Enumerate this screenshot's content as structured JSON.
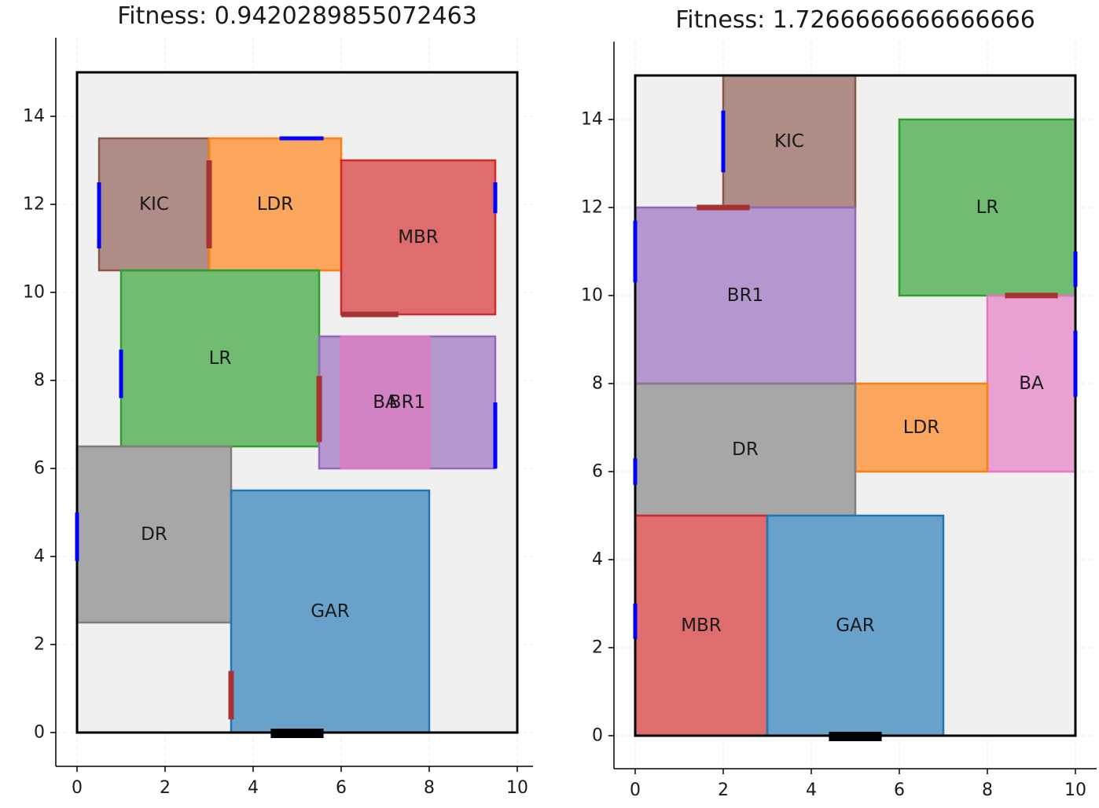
{
  "chart_data": [
    {
      "type": "floorplan",
      "title": "Fitness: 0.9420289855072463",
      "xlim": [
        -0.5,
        10.3
      ],
      "ylim": [
        -0.75,
        15.75
      ],
      "xticks": [
        "0",
        "2",
        "4",
        "6",
        "8",
        "10"
      ],
      "yticks": [
        "0",
        "2",
        "4",
        "6",
        "8",
        "10",
        "12",
        "14"
      ],
      "grid": true,
      "boundary": {
        "x0": 0,
        "y0": 0,
        "x1": 10,
        "y1": 15
      },
      "rooms": [
        {
          "label": "KIC",
          "x0": 0.5,
          "y0": 10.5,
          "x1": 3.0,
          "y1": 13.5,
          "color": "#8c564b"
        },
        {
          "label": "LDR",
          "x0": 3.0,
          "y0": 10.5,
          "x1": 6.0,
          "y1": 13.5,
          "color": "#ff7f0e"
        },
        {
          "label": "MBR",
          "x0": 6.0,
          "y0": 9.5,
          "x1": 9.5,
          "y1": 13.0,
          "color": "#d62728"
        },
        {
          "label": "LR",
          "x0": 1.0,
          "y0": 6.5,
          "x1": 5.5,
          "y1": 10.5,
          "color": "#2ca02c"
        },
        {
          "label": "BR1",
          "x0": 5.5,
          "y0": 6.0,
          "x1": 9.5,
          "y1": 9.0,
          "color": "#9467bd"
        },
        {
          "label": "BA",
          "x0": 6.0,
          "y0": 6.0,
          "x1": 8.0,
          "y1": 9.0,
          "color": "#e377c2"
        },
        {
          "label": "DR",
          "x0": 0.0,
          "y0": 2.5,
          "x1": 3.5,
          "y1": 6.5,
          "color": "#7f7f7f"
        },
        {
          "label": "GAR",
          "x0": 3.5,
          "y0": 0.0,
          "x1": 8.0,
          "y1": 5.5,
          "color": "#1f77b4"
        }
      ],
      "windows": [
        [
          4.6,
          13.5,
          5.6,
          13.5
        ],
        [
          0.5,
          11.0,
          0.5,
          12.5
        ],
        [
          9.5,
          11.8,
          9.5,
          12.5
        ],
        [
          1.0,
          7.6,
          1.0,
          8.7
        ],
        [
          9.5,
          6.0,
          9.5,
          7.5
        ],
        [
          0.0,
          3.9,
          0.0,
          5.0
        ]
      ],
      "doors": [
        [
          3.0,
          11.0,
          3.0,
          13.0
        ],
        [
          6.0,
          9.5,
          7.3,
          9.5
        ],
        [
          5.5,
          6.6,
          5.5,
          8.1
        ],
        [
          3.5,
          0.3,
          3.5,
          1.4
        ]
      ],
      "entrance": [
        4.4,
        0,
        5.6,
        0
      ]
    },
    {
      "type": "floorplan",
      "title": "Fitness: 1.7266666666666666",
      "xlim": [
        -0.5,
        10.5
      ],
      "ylim": [
        -0.75,
        15.75
      ],
      "xticks": [
        "0",
        "2",
        "4",
        "6",
        "8",
        "10"
      ],
      "yticks": [
        "0",
        "2",
        "4",
        "6",
        "8",
        "10",
        "12",
        "14"
      ],
      "grid": true,
      "boundary": {
        "x0": 0,
        "y0": 0,
        "x1": 10,
        "y1": 15
      },
      "rooms": [
        {
          "label": "KIC",
          "x0": 2.0,
          "y0": 12.0,
          "x1": 5.0,
          "y1": 15.0,
          "color": "#8c564b"
        },
        {
          "label": "LR",
          "x0": 6.0,
          "y0": 10.0,
          "x1": 10.0,
          "y1": 14.0,
          "color": "#2ca02c"
        },
        {
          "label": "BR1",
          "x0": 0.0,
          "y0": 8.0,
          "x1": 5.0,
          "y1": 12.0,
          "color": "#9467bd"
        },
        {
          "label": "BA",
          "x0": 8.0,
          "y0": 6.0,
          "x1": 10.0,
          "y1": 10.0,
          "color": "#e377c2"
        },
        {
          "label": "LDR",
          "x0": 5.0,
          "y0": 6.0,
          "x1": 8.0,
          "y1": 8.0,
          "color": "#ff7f0e"
        },
        {
          "label": "DR",
          "x0": 0.0,
          "y0": 5.0,
          "x1": 5.0,
          "y1": 8.0,
          "color": "#7f7f7f"
        },
        {
          "label": "MBR",
          "x0": 0.0,
          "y0": 0.0,
          "x1": 3.0,
          "y1": 5.0,
          "color": "#d62728"
        },
        {
          "label": "GAR",
          "x0": 3.0,
          "y0": 0.0,
          "x1": 7.0,
          "y1": 5.0,
          "color": "#1f77b4"
        }
      ],
      "windows": [
        [
          2.0,
          12.8,
          2.0,
          14.2
        ],
        [
          0.0,
          10.3,
          0.0,
          11.7
        ],
        [
          10.0,
          10.2,
          10.0,
          11.0
        ],
        [
          10.0,
          7.7,
          10.0,
          9.2
        ],
        [
          0.0,
          5.7,
          0.0,
          6.3
        ],
        [
          0.0,
          2.2,
          0.0,
          3.0
        ]
      ],
      "doors": [
        [
          1.4,
          12.0,
          2.6,
          12.0
        ],
        [
          8.4,
          10.0,
          9.6,
          10.0
        ]
      ],
      "entrance": [
        4.4,
        0,
        5.6,
        0
      ]
    }
  ]
}
